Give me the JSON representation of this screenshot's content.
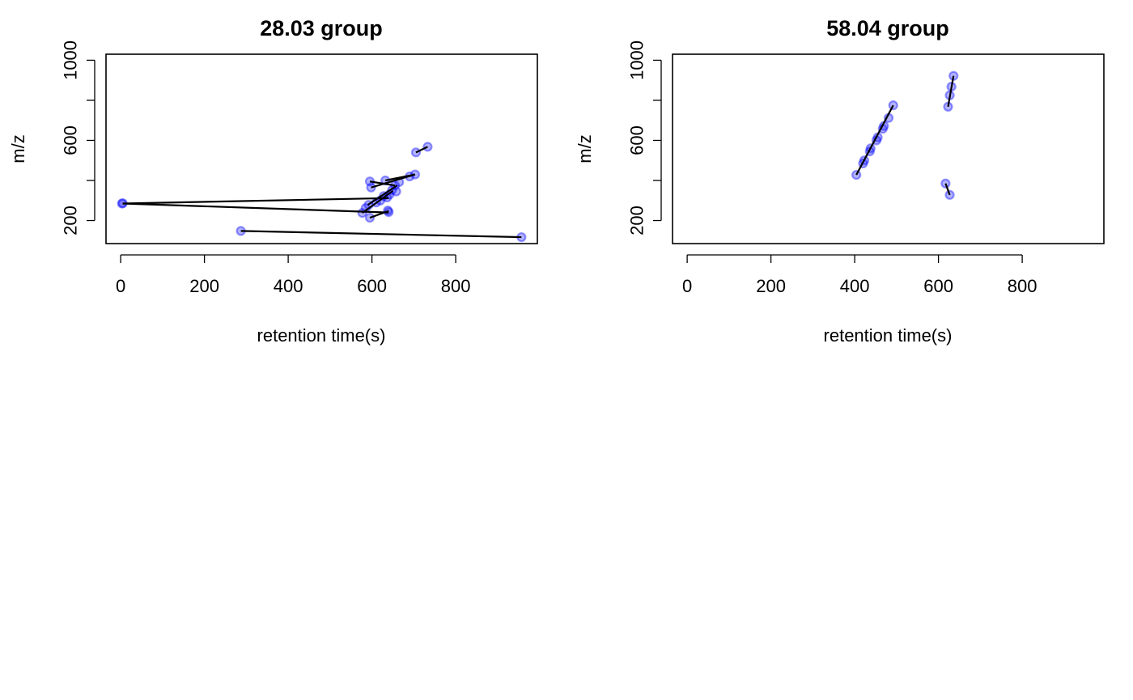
{
  "chart_data": [
    {
      "type": "scatter",
      "title": "28.03 group",
      "xlabel": "retention time(s)",
      "ylabel": "m/z",
      "xlim": [
        -35,
        995
      ],
      "ylim": [
        85,
        1030
      ],
      "x_ticks": [
        0,
        200,
        400,
        600,
        800
      ],
      "y_ticks": [
        200,
        400,
        600,
        800,
        1000
      ],
      "y_tick_labels_shown": [
        "200",
        "600",
        "1000"
      ],
      "grid": false,
      "point_color": "#0000ff",
      "points": [
        {
          "x": 3,
          "y": 285
        },
        {
          "x": 5,
          "y": 286
        },
        {
          "x": 287,
          "y": 148
        },
        {
          "x": 957,
          "y": 117
        },
        {
          "x": 577,
          "y": 238
        },
        {
          "x": 585,
          "y": 262
        },
        {
          "x": 592,
          "y": 278
        },
        {
          "x": 595,
          "y": 214
        },
        {
          "x": 598,
          "y": 365
        },
        {
          "x": 595,
          "y": 395
        },
        {
          "x": 610,
          "y": 290
        },
        {
          "x": 620,
          "y": 300
        },
        {
          "x": 628,
          "y": 322
        },
        {
          "x": 632,
          "y": 400
        },
        {
          "x": 638,
          "y": 250
        },
        {
          "x": 640,
          "y": 242
        },
        {
          "x": 636,
          "y": 315
        },
        {
          "x": 642,
          "y": 330
        },
        {
          "x": 648,
          "y": 352
        },
        {
          "x": 658,
          "y": 345
        },
        {
          "x": 655,
          "y": 375
        },
        {
          "x": 665,
          "y": 392
        },
        {
          "x": 690,
          "y": 420
        },
        {
          "x": 703,
          "y": 430
        },
        {
          "x": 705,
          "y": 540
        },
        {
          "x": 733,
          "y": 568
        }
      ],
      "segments": [
        [
          [
            5,
            285
          ],
          [
            640,
            240
          ]
        ],
        [
          [
            5,
            285
          ],
          [
            640,
            312
          ]
        ],
        [
          [
            287,
            148
          ],
          [
            957,
            117
          ]
        ],
        [
          [
            595,
            214
          ],
          [
            640,
            248
          ]
        ],
        [
          [
            577,
            238
          ],
          [
            650,
            348
          ]
        ],
        [
          [
            590,
            278
          ],
          [
            660,
            375
          ]
        ],
        [
          [
            598,
            365
          ],
          [
            703,
            430
          ]
        ],
        [
          [
            595,
            395
          ],
          [
            655,
            375
          ]
        ],
        [
          [
            632,
            400
          ],
          [
            703,
            430
          ]
        ],
        [
          [
            705,
            540
          ],
          [
            733,
            568
          ]
        ]
      ]
    },
    {
      "type": "scatter",
      "title": "58.04 group",
      "xlabel": "retention time(s)",
      "ylabel": "m/z",
      "xlim": [
        -35,
        995
      ],
      "ylim": [
        85,
        1030
      ],
      "x_ticks": [
        0,
        200,
        400,
        600,
        800
      ],
      "y_ticks": [
        200,
        400,
        600,
        800,
        1000
      ],
      "y_tick_labels_shown": [
        "200",
        "600",
        "1000"
      ],
      "grid": false,
      "point_color": "#0000ff",
      "points": [
        {
          "x": 404,
          "y": 428
        },
        {
          "x": 420,
          "y": 485
        },
        {
          "x": 423,
          "y": 500
        },
        {
          "x": 436,
          "y": 545
        },
        {
          "x": 438,
          "y": 560
        },
        {
          "x": 452,
          "y": 600
        },
        {
          "x": 455,
          "y": 615
        },
        {
          "x": 467,
          "y": 658
        },
        {
          "x": 470,
          "y": 672
        },
        {
          "x": 481,
          "y": 712
        },
        {
          "x": 492,
          "y": 775
        },
        {
          "x": 617,
          "y": 385
        },
        {
          "x": 627,
          "y": 328
        },
        {
          "x": 623,
          "y": 768
        },
        {
          "x": 627,
          "y": 825
        },
        {
          "x": 631,
          "y": 868
        },
        {
          "x": 636,
          "y": 922
        }
      ],
      "segments": [
        [
          [
            404,
            428
          ],
          [
            492,
            775
          ]
        ],
        [
          [
            617,
            385
          ],
          [
            627,
            328
          ]
        ],
        [
          [
            623,
            768
          ],
          [
            636,
            922
          ]
        ]
      ]
    }
  ]
}
